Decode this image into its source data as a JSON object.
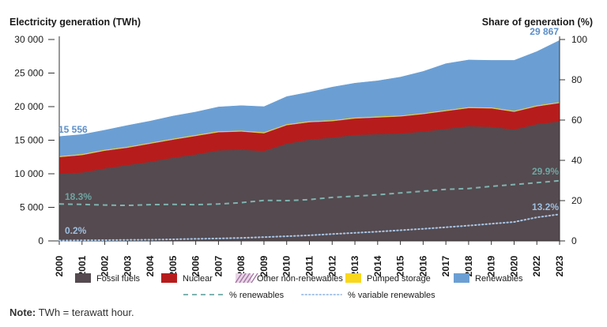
{
  "chart_data": {
    "type": "area",
    "title": "",
    "ylabel_left": "Electricity generation (TWh)",
    "ylabel_right": "Share of generation (%)",
    "left_ticks": [
      "0",
      "5 000",
      "10 000",
      "15 000",
      "20 000",
      "25 000",
      "30 000"
    ],
    "right_ticks": [
      "0",
      "20",
      "40",
      "60",
      "80",
      "100"
    ],
    "ylim_left": [
      0,
      30000
    ],
    "ylim_right": [
      0,
      100
    ],
    "categories": [
      "2000",
      "2001",
      "2002",
      "2003",
      "2004",
      "2005",
      "2006",
      "2007",
      "2008",
      "2009",
      "2010",
      "2011",
      "2012",
      "2013",
      "2014",
      "2015",
      "2016",
      "2017",
      "2018",
      "2019",
      "2020",
      "2022",
      "2023"
    ],
    "stacked_series": [
      {
        "name": "Fossil fuels",
        "color": "#544a4f",
        "values": [
          10000,
          10200,
          10800,
          11300,
          11800,
          12400,
          12900,
          13500,
          13600,
          13400,
          14500,
          15100,
          15400,
          15800,
          15900,
          16000,
          16300,
          16700,
          17100,
          17000,
          16600,
          17400,
          17800
        ]
      },
      {
        "name": "Nuclear",
        "color": "#b71c1c",
        "values": [
          2500,
          2600,
          2650,
          2600,
          2700,
          2700,
          2750,
          2700,
          2700,
          2650,
          2750,
          2600,
          2450,
          2450,
          2500,
          2550,
          2600,
          2650,
          2700,
          2750,
          2650,
          2650,
          2750
        ]
      },
      {
        "name": "Other non-renewables",
        "color": "#c9a0c4",
        "values": [
          50,
          50,
          50,
          50,
          50,
          50,
          50,
          50,
          50,
          50,
          50,
          50,
          50,
          50,
          50,
          50,
          50,
          50,
          50,
          50,
          50,
          50,
          50
        ]
      },
      {
        "name": "Pumped storage",
        "color": "#f9d71c",
        "values": [
          100,
          100,
          100,
          100,
          100,
          100,
          100,
          100,
          100,
          100,
          100,
          100,
          100,
          100,
          100,
          100,
          100,
          100,
          100,
          100,
          100,
          100,
          100
        ]
      },
      {
        "name": "Renewables",
        "color": "#6b9fd4",
        "values": [
          2906,
          2900,
          2900,
          3150,
          3200,
          3350,
          3400,
          3600,
          3700,
          3800,
          4100,
          4300,
          4900,
          5100,
          5300,
          5700,
          6200,
          6900,
          7000,
          7000,
          7500,
          8000,
          9167
        ]
      }
    ],
    "line_series": [
      {
        "name": "% renewables",
        "color": "#7fb3b0",
        "style": "dashed",
        "values": [
          18.3,
          18.1,
          17.8,
          17.6,
          18.0,
          18.1,
          18.0,
          18.3,
          19.0,
          20.1,
          20.0,
          20.5,
          21.6,
          22.2,
          22.9,
          23.8,
          24.7,
          25.6,
          26.0,
          27.1,
          28.0,
          28.9,
          29.9
        ]
      },
      {
        "name": "% variable renewables",
        "color": "#a9c6e8",
        "style": "dotted",
        "values": [
          0.2,
          0.3,
          0.4,
          0.5,
          0.6,
          0.8,
          1.0,
          1.2,
          1.5,
          1.9,
          2.3,
          2.8,
          3.4,
          4.0,
          4.6,
          5.3,
          6.0,
          6.8,
          7.6,
          8.5,
          9.4,
          11.7,
          13.2
        ]
      }
    ],
    "annotations": [
      {
        "text": "15 556",
        "color": "#5b8fc9"
      },
      {
        "text": "29 867",
        "color": "#5b8fc9"
      },
      {
        "text": "18.3%",
        "color": "#6fa5a2"
      },
      {
        "text": "29.9%",
        "color": "#6fa5a2"
      },
      {
        "text": "0.2%",
        "color": "#9fbfe0"
      },
      {
        "text": "13.2%",
        "color": "#9fbfe0"
      }
    ],
    "legend_placement": "bottom"
  },
  "note": {
    "label": "Note:",
    "text": "TWh = terawatt hour."
  }
}
